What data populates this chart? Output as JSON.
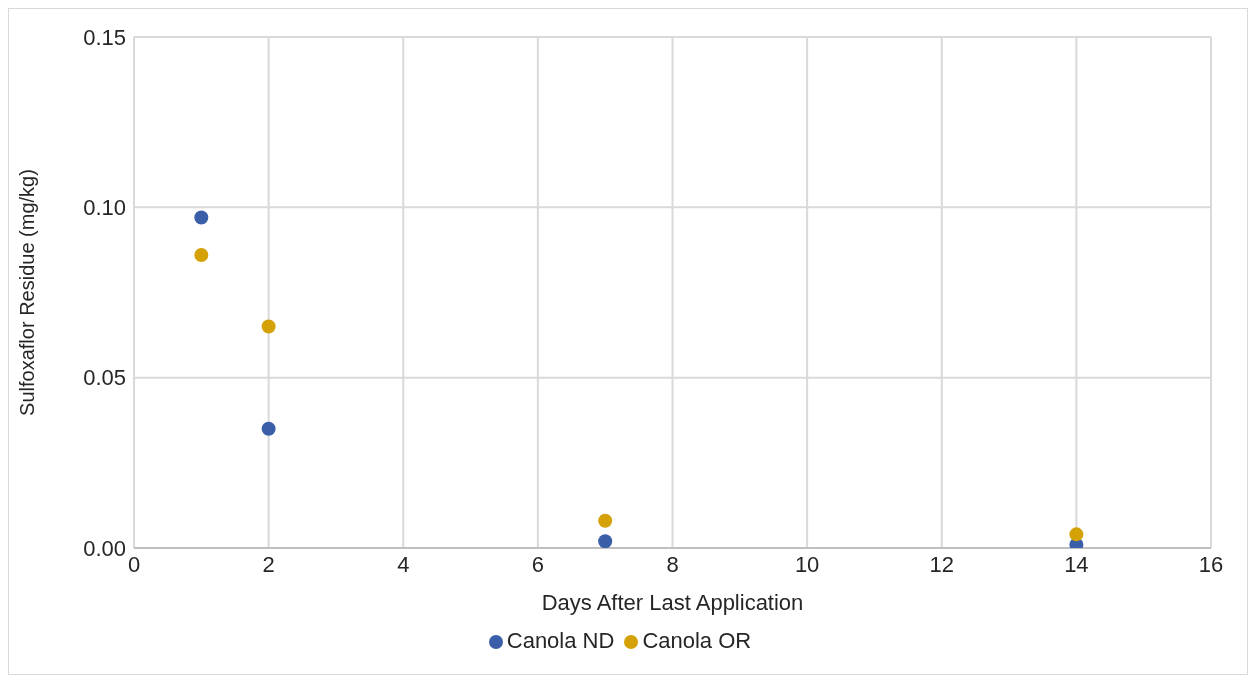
{
  "chart_data": {
    "type": "scatter",
    "xlabel": "Days After Last Application",
    "ylabel": "Sulfoxaflor Residue (mg/kg)",
    "x": [
      1,
      2,
      7,
      14
    ],
    "series": [
      {
        "name": "Canola ND",
        "color": "#3a5ea8",
        "values": [
          0.097,
          0.035,
          0.002,
          0.001
        ]
      },
      {
        "name": "Canola OR",
        "color": "#d4a106",
        "values": [
          0.086,
          0.065,
          0.008,
          0.004
        ]
      }
    ],
    "xlim": [
      0,
      16
    ],
    "xticks": [
      0,
      2,
      4,
      6,
      8,
      10,
      12,
      14,
      16
    ],
    "ylim": [
      0,
      0.15
    ],
    "yticks": [
      {
        "value": 0,
        "label": "0.00"
      },
      {
        "value": 0.05,
        "label": "0.05"
      },
      {
        "value": 0.1,
        "label": "0.10"
      },
      {
        "value": 0.15,
        "label": "0.15"
      }
    ],
    "grid": true,
    "legend": "bottom",
    "marker": "circle"
  }
}
